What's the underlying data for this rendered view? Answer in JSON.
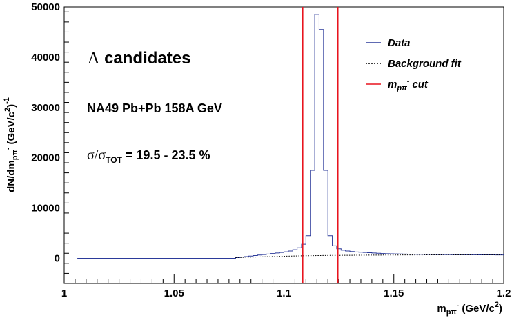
{
  "chart_data": {
    "type": "histogram",
    "xlim": [
      1.0,
      1.2
    ],
    "ylim": [
      -5000,
      50000
    ],
    "x_ticks": [
      {
        "value": 1.0,
        "label": "1"
      },
      {
        "value": 1.05,
        "label": "1.05"
      },
      {
        "value": 1.1,
        "label": "1.1"
      },
      {
        "value": 1.15,
        "label": "1.15"
      },
      {
        "value": 1.2,
        "label": "1.2"
      }
    ],
    "y_ticks": [
      {
        "value": 0,
        "label": "0"
      },
      {
        "value": 10000,
        "label": "10000"
      },
      {
        "value": 20000,
        "label": "20000"
      },
      {
        "value": 30000,
        "label": "30000"
      },
      {
        "value": 40000,
        "label": "40000"
      },
      {
        "value": 50000,
        "label": "50000"
      }
    ],
    "xlabel": {
      "main": "m",
      "sub": "pπ",
      "sup": "-",
      "tail": " (GeV/c",
      "unit_sup": "2",
      "close": ")"
    },
    "ylabel": {
      "main": "dN/dm",
      "sub": "pπ",
      "sup": "-",
      "tail": " (GeV/c",
      "unit_sup": "2",
      "close": ")",
      "exp": "-1"
    },
    "annotations": {
      "line1_symbol": "Λ",
      "line1_text": " candidates",
      "line2": "NA49 Pb+Pb 158A GeV",
      "line3_sigma": "σ/σ",
      "line3_sub": "TOT",
      "line3_text": " = 19.5 - 23.5 %"
    },
    "legend": {
      "position": "top-right",
      "entries": [
        {
          "label": "Data",
          "style": "solid",
          "color": "#2b3a9a"
        },
        {
          "label": "Background fit",
          "style": "dotted",
          "color": "#000000"
        },
        {
          "label_main": "m",
          "label_sub": "pπ",
          "label_sup": "-",
          "label_tail": " cut",
          "style": "solid",
          "color": "#e8141e"
        }
      ]
    },
    "cut_lines": [
      1.1085,
      1.1245
    ],
    "series": [
      {
        "name": "Data",
        "color": "#2b3a9a",
        "bin_width": 0.002,
        "bins": [
          [
            1.006,
            0
          ],
          [
            1.078,
            150
          ],
          [
            1.08,
            250
          ],
          [
            1.082,
            350
          ],
          [
            1.084,
            450
          ],
          [
            1.086,
            550
          ],
          [
            1.088,
            650
          ],
          [
            1.09,
            750
          ],
          [
            1.092,
            850
          ],
          [
            1.094,
            950
          ],
          [
            1.096,
            1050
          ],
          [
            1.098,
            1150
          ],
          [
            1.1,
            1300
          ],
          [
            1.102,
            1450
          ],
          [
            1.104,
            1700
          ],
          [
            1.106,
            2100
          ],
          [
            1.108,
            2800
          ],
          [
            1.11,
            4500
          ],
          [
            1.112,
            17500
          ],
          [
            1.114,
            48500
          ],
          [
            1.116,
            45500
          ],
          [
            1.118,
            17500
          ],
          [
            1.12,
            4500
          ],
          [
            1.122,
            2500
          ],
          [
            1.124,
            1900
          ],
          [
            1.126,
            1600
          ],
          [
            1.128,
            1450
          ],
          [
            1.13,
            1350
          ],
          [
            1.132,
            1250
          ],
          [
            1.134,
            1200
          ],
          [
            1.136,
            1150
          ],
          [
            1.138,
            1100
          ],
          [
            1.14,
            1050
          ],
          [
            1.142,
            1000
          ],
          [
            1.144,
            950
          ],
          [
            1.146,
            920
          ],
          [
            1.148,
            900
          ],
          [
            1.15,
            880
          ],
          [
            1.152,
            860
          ],
          [
            1.154,
            840
          ],
          [
            1.156,
            820
          ],
          [
            1.158,
            810
          ],
          [
            1.16,
            800
          ],
          [
            1.162,
            790
          ],
          [
            1.164,
            780
          ],
          [
            1.166,
            770
          ],
          [
            1.168,
            760
          ],
          [
            1.17,
            750
          ],
          [
            1.172,
            740
          ],
          [
            1.174,
            735
          ],
          [
            1.176,
            730
          ],
          [
            1.178,
            725
          ],
          [
            1.18,
            720
          ],
          [
            1.182,
            715
          ],
          [
            1.184,
            710
          ],
          [
            1.186,
            705
          ],
          [
            1.188,
            700
          ],
          [
            1.19,
            695
          ],
          [
            1.192,
            690
          ],
          [
            1.194,
            685
          ],
          [
            1.196,
            680
          ],
          [
            1.198,
            680
          ]
        ]
      },
      {
        "name": "Background fit",
        "color": "#000000",
        "points": [
          [
            1.078,
            150
          ],
          [
            1.09,
            300
          ],
          [
            1.1,
            420
          ],
          [
            1.11,
            520
          ],
          [
            1.12,
            580
          ],
          [
            1.14,
            640
          ],
          [
            1.16,
            680
          ],
          [
            1.18,
            700
          ],
          [
            1.2,
            710
          ]
        ]
      }
    ]
  }
}
